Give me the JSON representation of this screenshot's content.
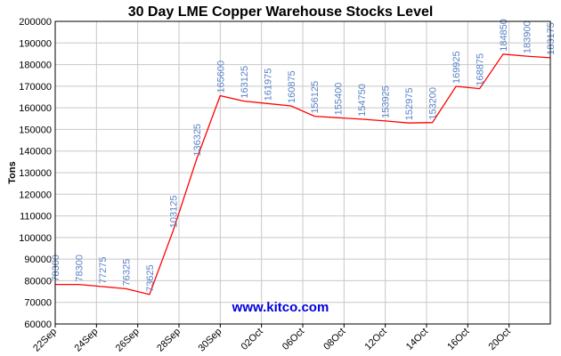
{
  "chart_data": {
    "type": "line",
    "title": "30 Day LME Copper Warehouse Stocks Level",
    "ylabel": "Tons",
    "xlabel": "",
    "ylim": [
      60000,
      200000
    ],
    "yticks": [
      60000,
      70000,
      80000,
      90000,
      100000,
      110000,
      120000,
      130000,
      140000,
      150000,
      160000,
      170000,
      180000,
      190000,
      200000
    ],
    "xtick_labels": [
      "22Sep",
      "24Sep",
      "26Sep",
      "28Sep",
      "30Sep",
      "02Oct",
      "06Oct",
      "08Oct",
      "12Oct",
      "14Oct",
      "16Oct",
      "20Oct"
    ],
    "grid": true,
    "values": [
      78300,
      78300,
      77275,
      76325,
      73625,
      103125,
      136325,
      165600,
      163125,
      161975,
      160875,
      156125,
      155400,
      154750,
      153925,
      152975,
      153200,
      169925,
      168875,
      184850,
      183900,
      183175
    ],
    "data_labels": [
      "78300",
      "78300",
      "77275",
      "76325",
      "73625",
      "103125",
      "136325",
      "165600",
      "163125",
      "161975",
      "160875",
      "156125",
      "155400",
      "154750",
      "153925",
      "152975",
      "153200",
      "169925",
      "168875",
      "184850",
      "183900",
      "183175"
    ],
    "watermark": "www.kitco.com",
    "colors": {
      "line": "#ff0000",
      "labels": "#5a82c8",
      "grid": "#c8c8c8",
      "watermark": "#0000dd",
      "axis": "#000000"
    }
  }
}
